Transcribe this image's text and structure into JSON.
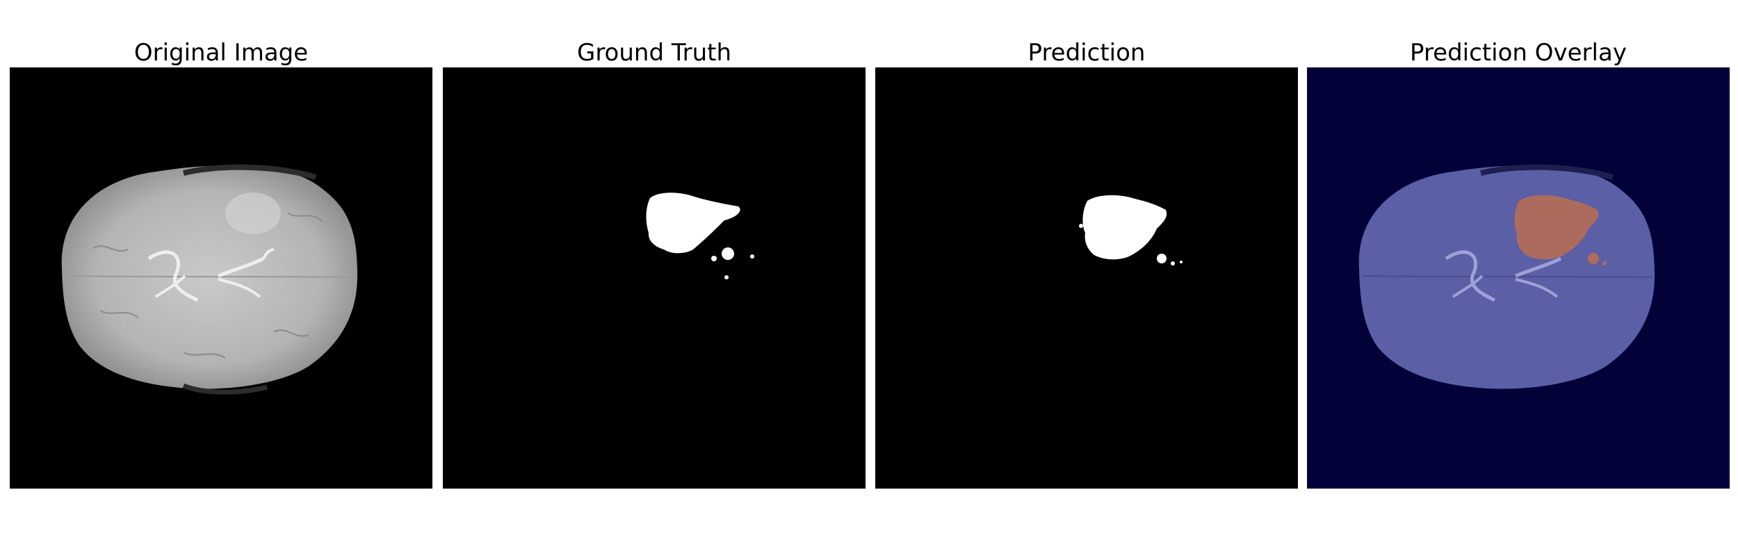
{
  "figure": {
    "panels": [
      {
        "id": "original",
        "title": "Original Image"
      },
      {
        "id": "ground_truth",
        "title": "Ground Truth"
      },
      {
        "id": "prediction",
        "title": "Prediction"
      },
      {
        "id": "overlay",
        "title": "Prediction Overlay"
      }
    ],
    "colors": {
      "background": "#000000",
      "mask": "#ffffff",
      "overlay_background": "#020239",
      "overlay_brain": "#5a5fa6",
      "overlay_tumor": "#b26b5a"
    }
  }
}
